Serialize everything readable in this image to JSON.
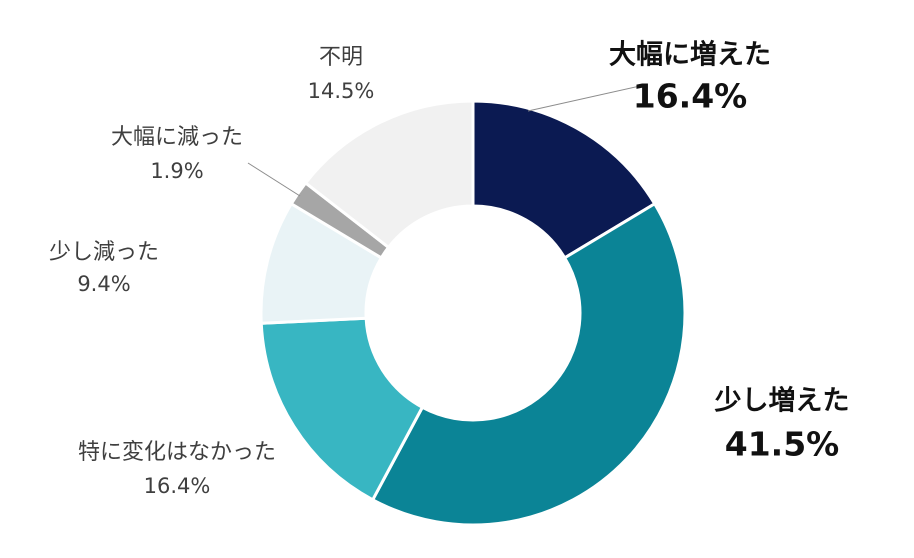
{
  "chart_data": {
    "type": "pie",
    "donut": true,
    "start_angle_deg": 0,
    "direction": "clockwise",
    "slices": [
      {
        "label": "大幅に増えた",
        "value": 16.4,
        "value_text": "16.4%",
        "color": "#0b1a52",
        "emphasis": true
      },
      {
        "label": "少し増えた",
        "value": 41.5,
        "value_text": "41.5%",
        "color": "#0b8496",
        "emphasis": true
      },
      {
        "label": "特に変化はなかった",
        "value": 16.4,
        "value_text": "16.4%",
        "color": "#38b6c2",
        "emphasis": false
      },
      {
        "label": "少し減った",
        "value": 9.4,
        "value_text": "9.4%",
        "color": "#e9f3f6",
        "emphasis": false
      },
      {
        "label": "大幅に減った",
        "value": 1.9,
        "value_text": "1.9%",
        "color": "#a6a6a6",
        "emphasis": false
      },
      {
        "label": "不明",
        "value": 14.5,
        "value_text": "14.5%",
        "color": "#f1f1f1",
        "emphasis": false
      }
    ]
  }
}
